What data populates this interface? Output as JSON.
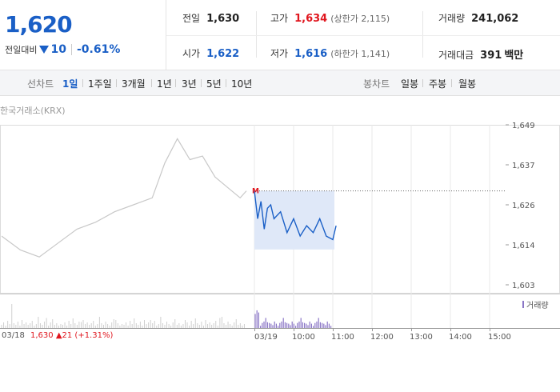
{
  "quote": {
    "price": "1,620",
    "change_label": "전일대비",
    "change_value": "10",
    "change_pct": "-0.61%"
  },
  "stats": {
    "prev_close": {
      "label": "전일",
      "value": "1,630"
    },
    "open": {
      "label": "시가",
      "value": "1,622"
    },
    "high": {
      "label": "고가",
      "value": "1,634",
      "sub": "(상한가 2,115)"
    },
    "low": {
      "label": "저가",
      "value": "1,616",
      "sub": "(하한가 1,141)"
    },
    "volume": {
      "label": "거래량",
      "value": "241,062"
    },
    "amount": {
      "label": "거래대금",
      "value": "391",
      "unit": "백만"
    }
  },
  "tabs": {
    "line_label": "선차트",
    "line_tabs": [
      "1일",
      "1주일",
      "3개월",
      "1년",
      "3년",
      "5년",
      "10년"
    ],
    "active": "1일",
    "candle_label": "봉차트",
    "candle_tabs": [
      "일봉",
      "주봉",
      "월봉"
    ]
  },
  "source": "한국거래소(KRX)",
  "base_label": {
    "date": "03/18",
    "text": "1,630 ▲21 (+1.31%)"
  },
  "volume_legend": "거래량",
  "colors": {
    "today_line": "#1a5fc6",
    "prev_line": "#c8c8c8",
    "fill": "#dfe8f8",
    "up": "#e0161e",
    "down": "#1a5fc6",
    "volume": "#8a76c6"
  },
  "chart_data": {
    "type": "line",
    "y_ticks": [
      "1,649",
      "1,637",
      "1,626",
      "1,614",
      "1,603"
    ],
    "ylim": [
      1603,
      1649
    ],
    "x_ticks": [
      "03/19",
      "10:00",
      "11:00",
      "12:00",
      "13:00",
      "14:00",
      "15:00"
    ],
    "prev_close": 1630,
    "series": [
      {
        "x": [
          "03/18 09:00",
          "03/18 09:30",
          "03/18 10:00",
          "03/18 10:30",
          "03/18 11:00",
          "03/18 11:30",
          "03/18 12:00",
          "03/18 12:30",
          "03/18 13:00",
          "03/18 13:20",
          "03/18 13:40",
          "03/18 14:00",
          "03/18 14:20",
          "03/18 14:40",
          "03/18 15:00",
          "03/18 15:20",
          "03/18 15:30"
        ],
        "y": [
          1617,
          1613,
          1611,
          1615,
          1619,
          1621,
          1624,
          1626,
          1628,
          1638,
          1645,
          1639,
          1640,
          1634,
          1631,
          1628,
          1630
        ]
      },
      {
        "x": [
          "09:00",
          "09:05",
          "09:10",
          "09:15",
          "09:20",
          "09:25",
          "09:30",
          "09:40",
          "09:50",
          "10:00",
          "10:10",
          "10:20",
          "10:30",
          "10:40",
          "10:50",
          "11:00",
          "11:05"
        ],
        "y": [
          1630,
          1622,
          1627,
          1619,
          1625,
          1626,
          1622,
          1624,
          1618,
          1622,
          1617,
          1620,
          1618,
          1622,
          1617,
          1616,
          1620
        ]
      }
    ]
  }
}
